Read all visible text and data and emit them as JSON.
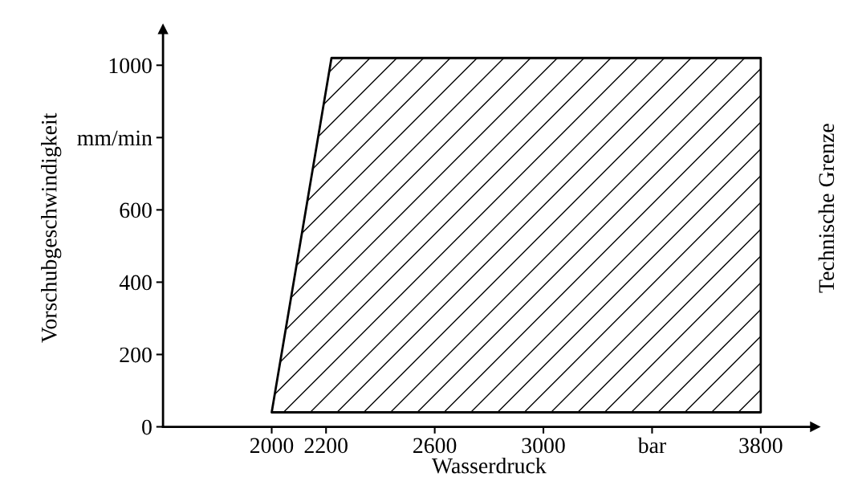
{
  "chart_data": {
    "type": "area",
    "xlabel": "Wasserdruck",
    "ylabel": "Vorschubgeschwindigkeit",
    "annotations": [
      "Technische Grenze"
    ],
    "x": [
      2000,
      2220,
      3800
    ],
    "series": [
      {
        "color": "#000000",
        "values": [
          40,
          1020,
          1020
        ]
      }
    ],
    "xlim": [
      1600,
      4000
    ],
    "ylim": [
      0,
      1100
    ],
    "xticks": [
      2000,
      2200,
      2600,
      3000,
      {
        "value": 3400,
        "label": "bar"
      },
      3800
    ],
    "yticks": [
      0,
      200,
      400,
      600,
      {
        "value": 800,
        "label": "mm/min"
      },
      1000
    ],
    "grid": false,
    "legend": false
  }
}
